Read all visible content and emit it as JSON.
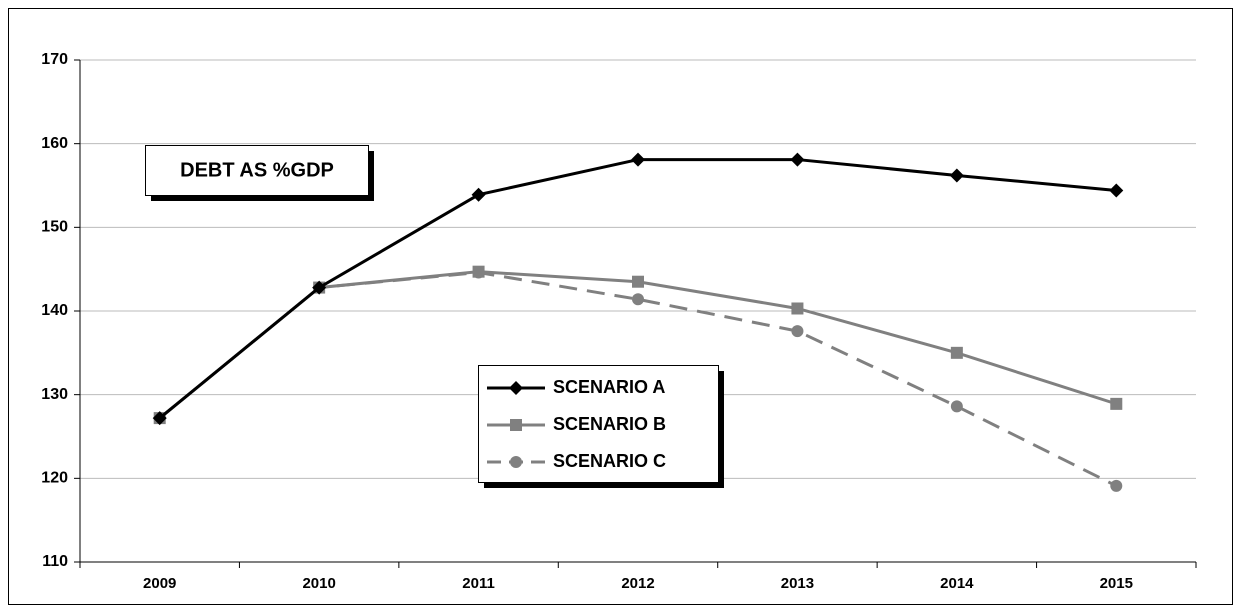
{
  "chart_data": {
    "type": "line",
    "title": "DEBT AS %GDP",
    "categories": [
      "2009",
      "2010",
      "2011",
      "2012",
      "2013",
      "2014",
      "2015"
    ],
    "series": [
      {
        "name": "SCENARIO A",
        "color": "#000000",
        "marker": "diamond",
        "line_style": "solid",
        "values": [
          127.2,
          142.8,
          153.9,
          158.1,
          158.1,
          156.2,
          154.4
        ]
      },
      {
        "name": "SCENARIO B",
        "color": "#808080",
        "marker": "square",
        "line_style": "solid",
        "values": [
          127.2,
          142.8,
          144.7,
          143.5,
          140.3,
          135,
          128.9
        ]
      },
      {
        "name": "SCENARIO C",
        "color": "#808080",
        "marker": "circle",
        "line_style": "dashed",
        "values": [
          127.2,
          142.8,
          144.6,
          141.4,
          137.6,
          128.6,
          119.1
        ]
      }
    ],
    "ylim": [
      110,
      170
    ],
    "yticks": [
      110,
      120,
      130,
      140,
      150,
      160,
      170
    ],
    "grid": true
  }
}
